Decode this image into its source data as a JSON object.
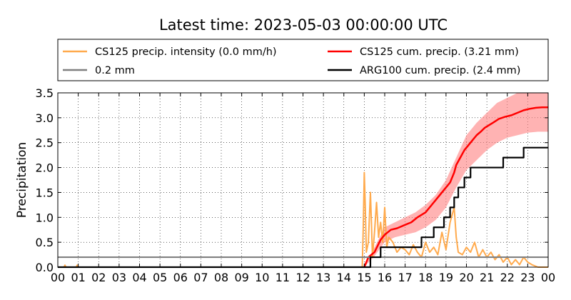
{
  "chart_data": {
    "type": "line",
    "title": "Latest time: 2023-05-03 00:00:00 UTC",
    "ylabel": "Precipitation",
    "xlabel": "",
    "xlim": [
      0,
      24
    ],
    "ylim": [
      0,
      3.5
    ],
    "grid": true,
    "legend_position": "top",
    "x_tick_labels": [
      "00",
      "01",
      "02",
      "03",
      "04",
      "05",
      "06",
      "07",
      "08",
      "09",
      "10",
      "11",
      "12",
      "13",
      "14",
      "15",
      "16",
      "17",
      "18",
      "19",
      "20",
      "21",
      "22",
      "23",
      "00"
    ],
    "y_tick_labels": [
      "0.0",
      "0.5",
      "1.0",
      "1.5",
      "2.0",
      "2.5",
      "3.0",
      "3.5"
    ],
    "legend": [
      {
        "label": "CS125 precip. intensity (0.0 mm/h)",
        "color": "#ffaa4d"
      },
      {
        "label": "CS125 cum. precip. (3.21 mm)",
        "color": "#ff0000"
      },
      {
        "label": "0.2 mm",
        "color": "#808080"
      },
      {
        "label": "ARG100 cum. precip. (2.4 mm)",
        "color": "#000000"
      }
    ],
    "series": [
      {
        "color": "#ffaa4d",
        "x": [
          0,
          0.3,
          0.35,
          0.4,
          0.6,
          0.9,
          0.95,
          1.0,
          1.2,
          14.9,
          14.95,
          15.0,
          15.05,
          15.1,
          15.2,
          15.3,
          15.35,
          15.4,
          15.5,
          15.6,
          15.7,
          15.8,
          15.9,
          16.0,
          16.1,
          16.2,
          16.4,
          16.6,
          16.8,
          17.0,
          17.2,
          17.4,
          17.6,
          17.8,
          18.0,
          18.2,
          18.4,
          18.6,
          18.8,
          19.0,
          19.2,
          19.4,
          19.5,
          19.6,
          19.8,
          20.0,
          20.2,
          20.4,
          20.6,
          20.8,
          21.0,
          21.2,
          21.4,
          21.6,
          21.8,
          22.0,
          22.2,
          22.4,
          22.6,
          22.8,
          23.0,
          23.2,
          23.5,
          24.0
        ],
        "y": [
          0,
          0,
          0.04,
          0,
          0,
          0,
          0.04,
          0,
          0,
          0,
          0.8,
          1.9,
          1.2,
          0.3,
          0.5,
          1.5,
          0.9,
          0.2,
          0.7,
          1.3,
          0.6,
          0.9,
          0.5,
          1.2,
          0.4,
          0.6,
          0.5,
          0.3,
          0.4,
          0.35,
          0.25,
          0.45,
          0.3,
          0.2,
          0.5,
          0.3,
          0.4,
          0.25,
          0.7,
          0.35,
          0.9,
          1.2,
          0.6,
          0.3,
          0.25,
          0.4,
          0.3,
          0.5,
          0.2,
          0.35,
          0.2,
          0.3,
          0.15,
          0.25,
          0.1,
          0.2,
          0.05,
          0.15,
          0.05,
          0.2,
          0.1,
          0.05,
          0,
          0
        ]
      },
      {
        "color": "#ff0000",
        "x": [
          15,
          15.2,
          15.5,
          15.8,
          16,
          16.3,
          16.6,
          17,
          17.3,
          17.6,
          18,
          18.3,
          18.6,
          18.9,
          19.2,
          19.4,
          19.5,
          19.7,
          19.9,
          20.1,
          20.3,
          20.5,
          20.7,
          20.9,
          21.1,
          21.3,
          21.6,
          21.9,
          22.2,
          22.5,
          22.8,
          23.1,
          23.4,
          23.7,
          24
        ],
        "y": [
          0,
          0.2,
          0.3,
          0.55,
          0.65,
          0.75,
          0.78,
          0.85,
          0.9,
          1.0,
          1.1,
          1.25,
          1.4,
          1.55,
          1.7,
          1.9,
          2.05,
          2.2,
          2.35,
          2.45,
          2.55,
          2.65,
          2.72,
          2.8,
          2.85,
          2.9,
          2.98,
          3.02,
          3.05,
          3.1,
          3.15,
          3.18,
          3.2,
          3.21,
          3.21
        ]
      },
      {
        "color": "#808080",
        "x": [
          0,
          24
        ],
        "y": [
          0.2,
          0.2
        ]
      },
      {
        "color": "#000000",
        "x": [
          0,
          15.3,
          15.3,
          15.8,
          15.8,
          17.8,
          17.8,
          18.4,
          18.4,
          18.9,
          18.9,
          19.2,
          19.2,
          19.4,
          19.4,
          19.6,
          19.6,
          19.9,
          19.9,
          20.2,
          20.2,
          20.5,
          20.5,
          21.0,
          21.0,
          21.8,
          21.8,
          22.8,
          22.8,
          24
        ],
        "y": [
          0,
          0,
          0.2,
          0.2,
          0.4,
          0.4,
          0.6,
          0.6,
          0.8,
          0.8,
          1.0,
          1.0,
          1.2,
          1.2,
          1.4,
          1.4,
          1.6,
          1.6,
          1.8,
          1.8,
          2.0,
          2.0,
          2.0,
          2.0,
          2.0,
          2.0,
          2.2,
          2.2,
          2.4,
          2.4
        ]
      }
    ],
    "band": {
      "color": "#ff8080",
      "x": [
        15,
        15.5,
        16,
        16.5,
        17,
        17.5,
        18,
        18.5,
        19,
        19.5,
        20,
        20.5,
        21,
        21.5,
        22,
        22.5,
        23,
        23.5,
        24
      ],
      "y_low": [
        0,
        0.22,
        0.5,
        0.6,
        0.65,
        0.7,
        0.8,
        0.95,
        1.2,
        1.6,
        1.95,
        2.15,
        2.35,
        2.5,
        2.6,
        2.65,
        2.7,
        2.72,
        2.72
      ],
      "y_high": [
        0,
        0.4,
        0.8,
        0.9,
        1.0,
        1.1,
        1.25,
        1.45,
        1.75,
        2.2,
        2.65,
        2.9,
        3.1,
        3.3,
        3.4,
        3.5,
        3.5,
        3.5,
        3.5
      ]
    }
  }
}
